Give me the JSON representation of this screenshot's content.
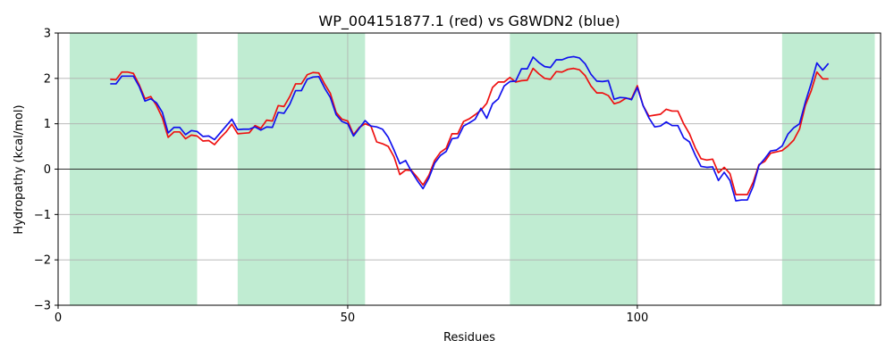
{
  "chart_data": {
    "type": "line",
    "title": "WP_004151877.1 (red) vs G8WDN2 (blue)",
    "xlabel": "Residues",
    "ylabel": "Hydropathy (kcal/mol)",
    "xlim": [
      0,
      142
    ],
    "ylim": [
      -3,
      3
    ],
    "xticks": [
      0,
      50,
      100
    ],
    "yticks": [
      -3,
      -2,
      -1,
      0,
      1,
      2,
      3
    ],
    "grid": true,
    "zero_line": true,
    "shaded_regions": [
      [
        2,
        24
      ],
      [
        31,
        53
      ],
      [
        78,
        100
      ],
      [
        125,
        141
      ]
    ],
    "shade_color": "#c0ecd2",
    "series": [
      {
        "color": "#ee1111",
        "x": [
          9,
          10,
          11,
          12,
          13,
          14,
          15,
          16,
          17,
          18,
          19,
          20,
          21,
          22,
          23,
          24,
          25,
          26,
          27,
          28,
          29,
          30,
          31,
          32,
          33,
          34,
          35,
          36,
          37,
          38,
          39,
          40,
          41,
          42,
          43,
          44,
          45,
          46,
          47,
          48,
          49,
          50,
          51,
          52,
          53,
          54,
          55,
          56,
          57,
          58,
          59,
          60,
          61,
          62,
          63,
          64,
          65,
          66,
          67,
          68,
          69,
          70,
          71,
          72,
          73,
          74,
          75,
          76,
          77,
          78,
          79,
          80,
          81,
          82,
          83,
          84,
          85,
          86,
          87,
          88,
          89,
          90,
          91,
          92,
          93,
          94,
          95,
          96,
          97,
          98,
          99,
          100,
          101,
          102,
          103,
          104,
          105,
          106,
          107,
          108,
          109,
          110,
          111,
          112,
          113,
          114,
          115,
          116,
          117,
          118,
          119,
          120,
          121,
          122,
          123,
          124,
          125,
          126,
          127,
          128,
          129,
          130,
          131,
          132,
          133
        ],
        "y": [
          1.98,
          1.97,
          2.14,
          2.14,
          2.11,
          1.86,
          1.55,
          1.6,
          1.4,
          1.13,
          0.7,
          0.82,
          0.82,
          0.67,
          0.75,
          0.73,
          0.62,
          0.63,
          0.54,
          0.69,
          0.82,
          0.99,
          0.78,
          0.79,
          0.8,
          0.96,
          0.9,
          1.08,
          1.06,
          1.4,
          1.38,
          1.6,
          1.88,
          1.88,
          2.08,
          2.13,
          2.12,
          1.88,
          1.67,
          1.25,
          1.1,
          1.06,
          0.76,
          0.92,
          1.0,
          0.95,
          0.6,
          0.56,
          0.5,
          0.27,
          -0.12,
          -0.02,
          -0.03,
          -0.18,
          -0.35,
          -0.14,
          0.19,
          0.37,
          0.46,
          0.78,
          0.78,
          1.05,
          1.11,
          1.2,
          1.3,
          1.45,
          1.8,
          1.92,
          1.92,
          2.02,
          1.92,
          1.95,
          1.96,
          2.22,
          2.1,
          2.0,
          1.98,
          2.15,
          2.14,
          2.2,
          2.22,
          2.19,
          2.06,
          1.83,
          1.68,
          1.68,
          1.62,
          1.44,
          1.48,
          1.56,
          1.55,
          1.84,
          1.4,
          1.17,
          1.19,
          1.21,
          1.32,
          1.28,
          1.28,
          1.0,
          0.78,
          0.47,
          0.23,
          0.2,
          0.22,
          -0.08,
          0.04,
          -0.1,
          -0.56,
          -0.56,
          -0.56,
          -0.29,
          0.1,
          0.17,
          0.35,
          0.38,
          0.41,
          0.51,
          0.64,
          0.88,
          1.4,
          1.72,
          2.14,
          1.99,
          1.99
        ]
      },
      {
        "color": "#1111ee",
        "x": [
          9,
          10,
          11,
          12,
          13,
          14,
          15,
          16,
          17,
          18,
          19,
          20,
          21,
          22,
          23,
          24,
          25,
          26,
          27,
          28,
          29,
          30,
          31,
          32,
          33,
          34,
          35,
          36,
          37,
          38,
          39,
          40,
          41,
          42,
          43,
          44,
          45,
          46,
          47,
          48,
          49,
          50,
          51,
          52,
          53,
          54,
          55,
          56,
          57,
          58,
          59,
          60,
          61,
          62,
          63,
          64,
          65,
          66,
          67,
          68,
          69,
          70,
          71,
          72,
          73,
          74,
          75,
          76,
          77,
          78,
          79,
          80,
          81,
          82,
          83,
          84,
          85,
          86,
          87,
          88,
          89,
          90,
          91,
          92,
          93,
          94,
          95,
          96,
          97,
          98,
          99,
          100,
          101,
          102,
          103,
          104,
          105,
          106,
          107,
          108,
          109,
          110,
          111,
          112,
          113,
          114,
          115,
          116,
          117,
          118,
          119,
          120,
          121,
          122,
          123,
          124,
          125,
          126,
          127,
          128,
          129,
          130,
          131,
          132,
          133
        ],
        "y": [
          1.88,
          1.88,
          2.05,
          2.05,
          2.05,
          1.82,
          1.5,
          1.55,
          1.46,
          1.25,
          0.8,
          0.92,
          0.92,
          0.76,
          0.85,
          0.83,
          0.72,
          0.73,
          0.65,
          0.8,
          0.95,
          1.1,
          0.87,
          0.88,
          0.88,
          0.93,
          0.86,
          0.93,
          0.92,
          1.25,
          1.23,
          1.43,
          1.73,
          1.73,
          1.98,
          2.03,
          2.04,
          1.79,
          1.58,
          1.2,
          1.05,
          1.0,
          0.73,
          0.9,
          1.07,
          0.95,
          0.93,
          0.88,
          0.7,
          0.42,
          0.12,
          0.19,
          -0.05,
          -0.25,
          -0.43,
          -0.2,
          0.13,
          0.3,
          0.39,
          0.67,
          0.69,
          0.95,
          1.02,
          1.1,
          1.34,
          1.12,
          1.44,
          1.55,
          1.83,
          1.93,
          1.94,
          2.21,
          2.21,
          2.47,
          2.35,
          2.26,
          2.24,
          2.41,
          2.41,
          2.46,
          2.48,
          2.45,
          2.32,
          2.09,
          1.94,
          1.93,
          1.95,
          1.54,
          1.58,
          1.57,
          1.53,
          1.8,
          1.4,
          1.13,
          0.93,
          0.95,
          1.04,
          0.96,
          0.96,
          0.69,
          0.6,
          0.31,
          0.06,
          0.04,
          0.05,
          -0.25,
          -0.07,
          -0.25,
          -0.7,
          -0.68,
          -0.68,
          -0.38,
          0.08,
          0.23,
          0.4,
          0.42,
          0.51,
          0.77,
          0.91,
          1.0,
          1.47,
          1.88,
          2.34,
          2.18,
          2.33
        ]
      }
    ]
  }
}
